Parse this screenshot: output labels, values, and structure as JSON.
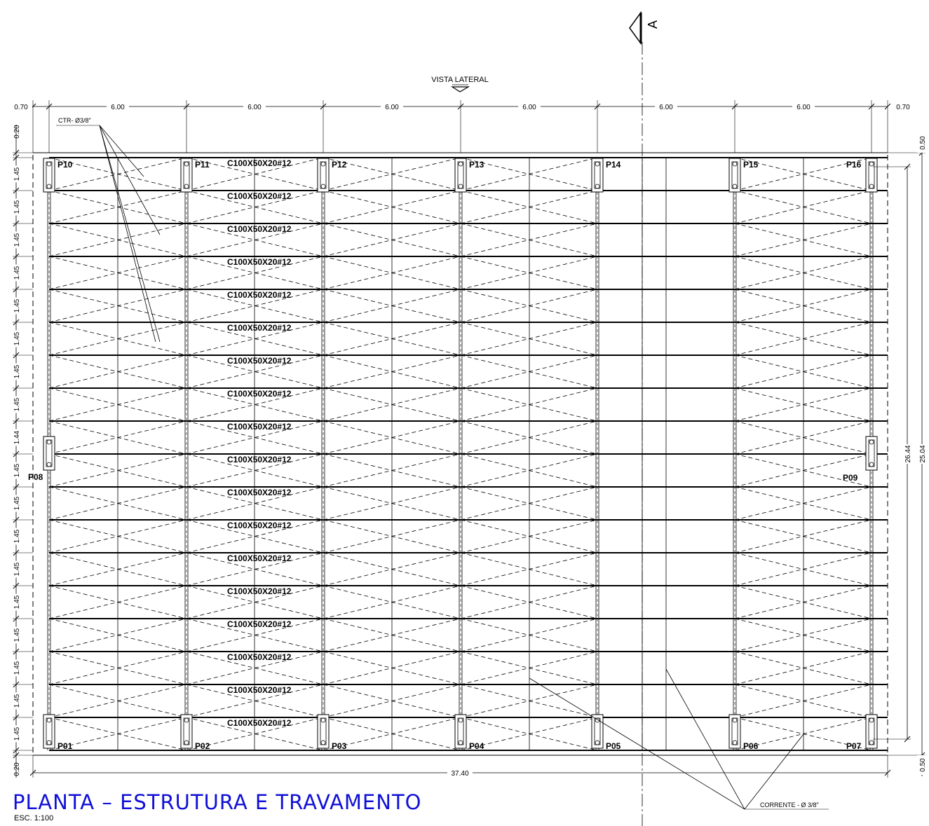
{
  "title": "PLANTA  –  ESTRUTURA  E  TRAVAMENTO",
  "scale": "ESC. 1:100",
  "colors": {
    "title": "#1010d8",
    "lines": "#000000"
  },
  "section_mark": {
    "label": "A"
  },
  "view_label": "VISTA LATERAL",
  "top_dimensions": [
    "0.70",
    "6.00",
    "6.00",
    "6.00",
    "6.00",
    "6.00",
    "6.00",
    "0.70"
  ],
  "left_dimensions": [
    "0.20",
    "1.45",
    "1.45",
    "1.45",
    "1.45",
    "1.45",
    "1.45",
    "1.45",
    "1.45",
    "1.44",
    "1.45",
    "1.45",
    "1.45",
    "1.45",
    "1.45",
    "1.45",
    "1.45",
    "1.45",
    "1.45",
    "0.20"
  ],
  "right_dimensions": {
    "top_margin": "0.50",
    "inner": "26.44",
    "outer": "25.04",
    "bottom_margin": "0.50"
  },
  "bottom_dimension": "37.40",
  "purlin_label": "C100X50X20#12",
  "purlin_count": 18,
  "pillars_top": [
    "P10",
    "P11",
    "P12",
    "P13",
    "P14",
    "P15",
    "P16"
  ],
  "pillars_bottom": [
    "P01",
    "P02",
    "P03",
    "P04",
    "P05",
    "P06",
    "P07"
  ],
  "pillars_mid": [
    "P08",
    "P09"
  ],
  "annotations": {
    "bracing": "CTR- Ø3/8\"",
    "chain": "CORRENTE - Ø 3/8\""
  }
}
